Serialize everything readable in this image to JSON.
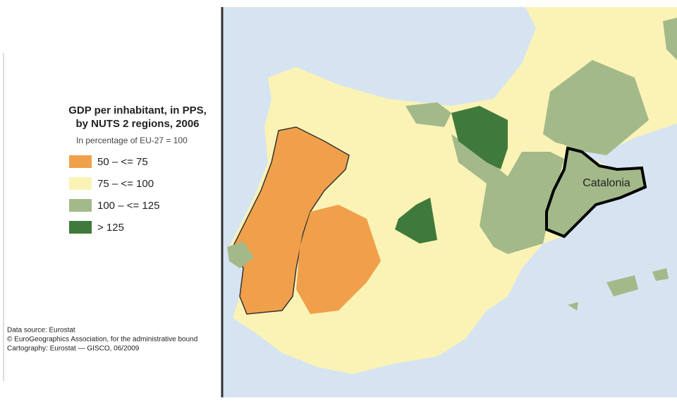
{
  "legend": {
    "title": [
      "GDP per inhabitant, in PPS,",
      "by NUTS 2 regions, 2006"
    ],
    "subtitle": "In percentage of EU-27 = 100",
    "items": [
      {
        "label": "50 – <= 75",
        "color": "#f0a04b"
      },
      {
        "label": "75 – <= 100",
        "color": "#fbf3b5"
      },
      {
        "label": "100 – <= 125",
        "color": "#a3b98a"
      },
      {
        "label": "> 125",
        "color": "#3f7a3c"
      }
    ]
  },
  "source": [
    "Data source: Eurostat",
    "© EuroGeographics Association, for the administrative bound",
    "Cartography: Eurostat — GISCO, 06/2009"
  ],
  "map_label": "Catalonia"
}
